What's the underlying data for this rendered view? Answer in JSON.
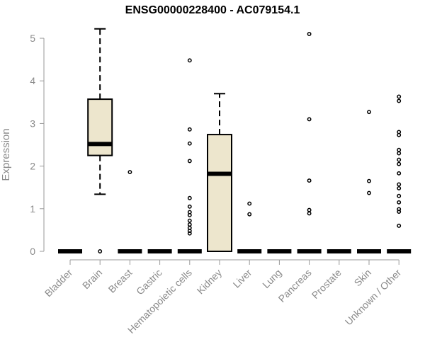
{
  "chart_data": {
    "type": "box",
    "title": "ENSG00000228400 - AC079154.1",
    "xlabel": "",
    "ylabel": "Expression",
    "ylim": [
      0,
      5.2
    ],
    "yticks": [
      0,
      1,
      2,
      3,
      4,
      5
    ],
    "box_color": "#ede6cd",
    "categories": [
      "Bladder",
      "Brain",
      "Breast",
      "Gastric",
      "Hematopoietic cells",
      "Kidney",
      "Liver",
      "Lung",
      "Pancreas",
      "Prostate",
      "Skin",
      "Unknown / Other"
    ],
    "boxes": [
      {
        "category": "Bladder",
        "q1": 0,
        "median": 0,
        "q3": 0,
        "whisker_low": 0,
        "whisker_high": 0,
        "outliers": []
      },
      {
        "category": "Brain",
        "q1": 2.25,
        "median": 2.52,
        "q3": 3.57,
        "whisker_low": 1.34,
        "whisker_high": 5.22,
        "outliers": [
          0
        ]
      },
      {
        "category": "Breast",
        "q1": 0,
        "median": 0,
        "q3": 0,
        "whisker_low": 0,
        "whisker_high": 0,
        "outliers": [
          1.86
        ]
      },
      {
        "category": "Gastric",
        "q1": 0,
        "median": 0,
        "q3": 0,
        "whisker_low": 0,
        "whisker_high": 0,
        "outliers": []
      },
      {
        "category": "Hematopoietic cells",
        "q1": 0,
        "median": 0,
        "q3": 0,
        "whisker_low": 0,
        "whisker_high": 0,
        "outliers": [
          4.48,
          2.86,
          2.53,
          2.12,
          1.25,
          1.05,
          0.92,
          0.85,
          0.72,
          0.63,
          0.55,
          0.48,
          0.42
        ]
      },
      {
        "category": "Kidney",
        "q1": 0,
        "median": 1.82,
        "q3": 2.74,
        "whisker_low": 0,
        "whisker_high": 3.7,
        "outliers": []
      },
      {
        "category": "Liver",
        "q1": 0,
        "median": 0,
        "q3": 0,
        "whisker_low": 0,
        "whisker_high": 0,
        "outliers": [
          1.12,
          0.87
        ]
      },
      {
        "category": "Lung",
        "q1": 0,
        "median": 0,
        "q3": 0,
        "whisker_low": 0,
        "whisker_high": 0,
        "outliers": []
      },
      {
        "category": "Pancreas",
        "q1": 0,
        "median": 0,
        "q3": 0,
        "whisker_low": 0,
        "whisker_high": 0,
        "outliers": [
          5.1,
          3.1,
          1.66,
          0.97,
          0.89
        ]
      },
      {
        "category": "Prostate",
        "q1": 0,
        "median": 0,
        "q3": 0,
        "whisker_low": 0,
        "whisker_high": 0,
        "outliers": []
      },
      {
        "category": "Skin",
        "q1": 0,
        "median": 0,
        "q3": 0,
        "whisker_low": 0,
        "whisker_high": 0,
        "outliers": [
          3.27,
          1.65,
          1.37
        ]
      },
      {
        "category": "Unknown / Other",
        "q1": 0,
        "median": 0,
        "q3": 0,
        "whisker_low": 0,
        "whisker_high": 0,
        "outliers": [
          3.63,
          3.53,
          2.8,
          2.73,
          2.38,
          2.3,
          2.15,
          2.05,
          1.83,
          1.57,
          1.48,
          1.3,
          1.15,
          0.99,
          0.93,
          0.6
        ]
      }
    ]
  }
}
